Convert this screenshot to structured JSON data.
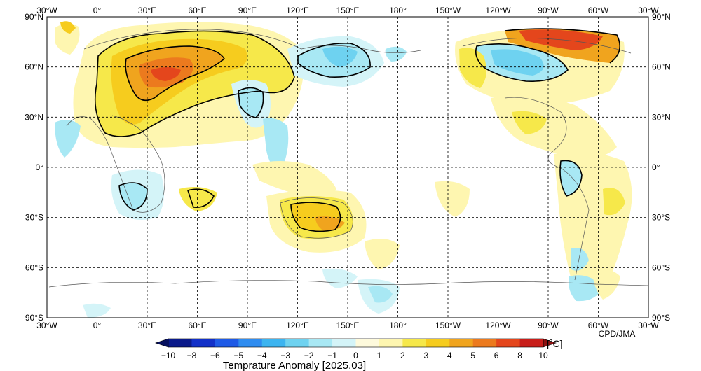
{
  "map": {
    "projection": "equirectangular",
    "lon_range": [
      -30,
      330
    ],
    "lat_range": [
      -90,
      90
    ],
    "lon_labels": [
      "30°W",
      "0°",
      "30°E",
      "60°E",
      "90°E",
      "120°E",
      "150°E",
      "180°",
      "150°W",
      "120°W",
      "90°W",
      "60°W",
      "30°W"
    ],
    "lat_labels": [
      "90°N",
      "60°N",
      "30°N",
      "0°",
      "30°S",
      "60°S",
      "90°S"
    ],
    "credit": "CPD/JMA"
  },
  "colorbar": {
    "title": "Temprature Anomaly [2025.03]",
    "unit": "[˚C]",
    "ticks": [
      "−10",
      "−8",
      "−6",
      "−5",
      "−4",
      "−3",
      "−2",
      "−1",
      "0",
      "1",
      "2",
      "3",
      "4",
      "5",
      "6",
      "8",
      "10"
    ],
    "colors": [
      "#0a1a8a",
      "#1230c8",
      "#1e5ae6",
      "#2e8cf0",
      "#3cb4f0",
      "#6ed2f0",
      "#a8e8f4",
      "#d4f4f8",
      "#fefadc",
      "#fef6b0",
      "#f6e84a",
      "#f6cc1e",
      "#f0a41e",
      "#ec7a1e",
      "#e4461c",
      "#c81e1a"
    ],
    "under_color": "#06105e",
    "over_color": "#8c1010"
  }
}
